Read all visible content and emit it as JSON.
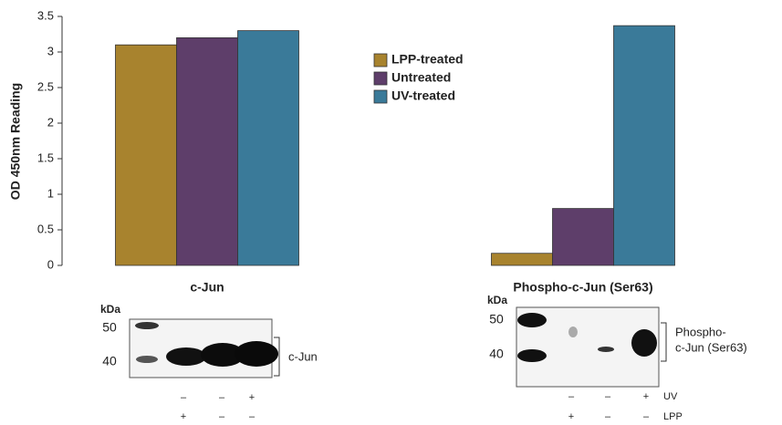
{
  "chart_data": {
    "type": "bar",
    "ylabel": "OD 450nm Reading",
    "categories": [
      "c-Jun",
      "Phospho-c-Jun (Ser63)"
    ],
    "series": [
      {
        "name": "LPP-treated",
        "color": "#a8832e",
        "values": [
          3.1,
          0.17
        ]
      },
      {
        "name": "Untreated",
        "color": "#5e3e6a",
        "values": [
          3.2,
          0.8
        ]
      },
      {
        "name": "UV-treated",
        "color": "#3a7a99",
        "values": [
          3.3,
          3.37
        ]
      }
    ],
    "ylim": [
      0,
      3.5
    ],
    "yticks": [
      0,
      0.5,
      1,
      1.5,
      2,
      2.5,
      3,
      3.5
    ],
    "grid": false,
    "legend": "top"
  },
  "blots": [
    {
      "kda_label": "kDa",
      "markers": [
        50,
        40
      ],
      "label": [
        "c-Jun"
      ],
      "rows": [
        [
          "–",
          "–",
          "+"
        ],
        [
          "+",
          "–",
          "–"
        ]
      ]
    },
    {
      "kda_label": "kDa",
      "markers": [
        50,
        40
      ],
      "label": [
        "Phospho-",
        "c-Jun (Ser63)"
      ],
      "rows": [
        [
          "–",
          "–",
          "+"
        ],
        [
          "+",
          "–",
          "–"
        ]
      ],
      "row_labels": [
        "UV",
        "LPP"
      ]
    }
  ]
}
